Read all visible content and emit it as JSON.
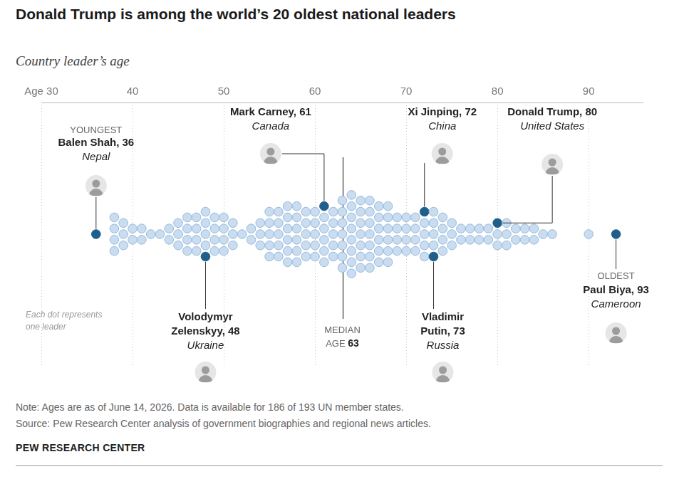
{
  "chart_data": {
    "type": "beeswarm",
    "title": "Donald Trump is among the world’s 20 oldest national leaders",
    "subtitle": "Country leader’s age",
    "xlim": [
      30,
      96
    ],
    "xticks": [
      {
        "value": 30,
        "label": "Age 30"
      },
      40,
      50,
      60,
      70,
      80,
      90
    ],
    "grid": true,
    "tick_labels": "x",
    "color": "#c9dcf0",
    "values": [
      36,
      38,
      38,
      38,
      38,
      39,
      39,
      39,
      40,
      40,
      41,
      41,
      42,
      43,
      44,
      44,
      45,
      45,
      45,
      46,
      46,
      46,
      46,
      47,
      47,
      47,
      47,
      48,
      48,
      48,
      48,
      48,
      49,
      49,
      49,
      49,
      50,
      50,
      50,
      50,
      51,
      51,
      51,
      52,
      53,
      53,
      54,
      54,
      54,
      55,
      55,
      55,
      55,
      55,
      56,
      56,
      56,
      56,
      56,
      57,
      57,
      57,
      57,
      57,
      57,
      58,
      58,
      58,
      58,
      58,
      58,
      59,
      59,
      59,
      59,
      59,
      60,
      60,
      60,
      60,
      60,
      61,
      61,
      61,
      61,
      61,
      61,
      62,
      62,
      62,
      62,
      62,
      63,
      63,
      63,
      63,
      63,
      63,
      63,
      64,
      64,
      64,
      64,
      64,
      64,
      64,
      64,
      65,
      65,
      65,
      65,
      65,
      65,
      65,
      66,
      66,
      66,
      66,
      66,
      66,
      66,
      67,
      67,
      67,
      67,
      67,
      67,
      68,
      68,
      68,
      68,
      68,
      68,
      69,
      69,
      69,
      69,
      70,
      70,
      70,
      70,
      71,
      71,
      71,
      71,
      72,
      72,
      72,
      72,
      72,
      73,
      73,
      73,
      73,
      73,
      74,
      74,
      74,
      74,
      75,
      75,
      75,
      76,
      76,
      77,
      77,
      78,
      78,
      79,
      79,
      80,
      80,
      80,
      81,
      81,
      81,
      82,
      82,
      83,
      83,
      84,
      84,
      85,
      86,
      90,
      93
    ],
    "highlights": [
      {
        "label": "Balen Shah, 36",
        "value": 36,
        "country": "Nepal",
        "tag": "YOUNGEST",
        "color": "#1f5f8b"
      },
      {
        "label": "Volodymyr Zelenskyy, 48",
        "value": 48,
        "country": "Ukraine",
        "color": "#1f5f8b"
      },
      {
        "label": "Mark Carney, 61",
        "value": 61,
        "country": "Canada",
        "color": "#1f5f8b"
      },
      {
        "label": "Xi Jinping, 72",
        "value": 72,
        "country": "China",
        "color": "#1f5f8b"
      },
      {
        "label": "Vladimir Putin, 73",
        "value": 73,
        "country": "Russia",
        "color": "#1f5f8b"
      },
      {
        "label": "Donald Trump, 80",
        "value": 80,
        "country": "United States",
        "color": "#1f5f8b"
      },
      {
        "label": "Paul Biya, 93",
        "value": 93,
        "country": "Cameroon",
        "tag": "OLDEST",
        "color": "#1f5f8b"
      }
    ],
    "median": {
      "label": "MEDIAN AGE",
      "value": 63
    },
    "annotation": "Each dot represents one leader",
    "note": "Note: Ages are as of June 14, 2026. Data is available for 186 of 193 UN member states.",
    "source": "Source: Pew Research Center analysis of government biographies and regional news articles.",
    "credit": "PEW RESEARCH CENTER"
  }
}
